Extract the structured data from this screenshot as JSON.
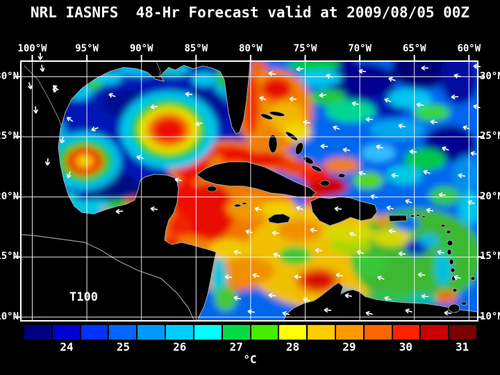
{
  "title": "NRL IASNFS  48-Hr Forecast valid at 2009/08/05 00Z",
  "axes": {
    "top": [
      "100°W",
      "95°W",
      "90°W",
      "85°W",
      "80°W",
      "75°W",
      "70°W",
      "65°W",
      "60°W"
    ],
    "left": [
      "30°N",
      "25°N",
      "20°N",
      "15°N",
      "10°N"
    ],
    "right": [
      "30°N",
      "25°N",
      "20°N",
      "15°N",
      "10°N"
    ]
  },
  "map": {
    "annotation": "T100"
  },
  "colorbar": {
    "tick_labels": [
      "24",
      "25",
      "26",
      "27",
      "28",
      "29",
      "30",
      "31"
    ],
    "unit": "°C",
    "segment_colors": [
      "#000080",
      "#0000D0",
      "#0033FF",
      "#0066FF",
      "#0099FF",
      "#00CCFF",
      "#00FFFF",
      "#00DD44",
      "#44EE00",
      "#FFFF00",
      "#FFCC00",
      "#FF9900",
      "#FF6600",
      "#FF2200",
      "#CC0000",
      "#7B0000"
    ]
  },
  "colors": {
    "background": "#000000",
    "text": "#FFFFFF",
    "grid": "#FFFFFF",
    "coastline": "#AAAAAA"
  }
}
